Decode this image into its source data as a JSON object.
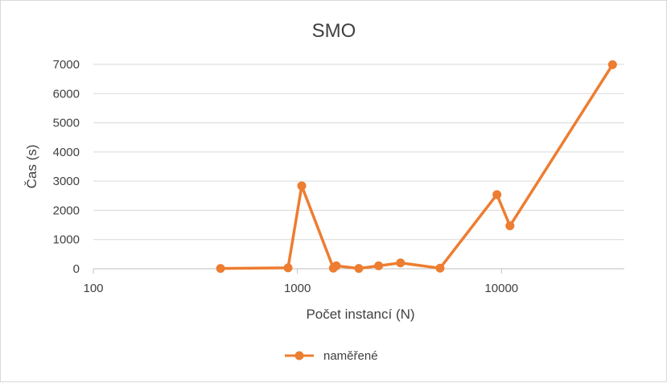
{
  "chart_data": {
    "type": "line",
    "title": "SMO",
    "xlabel": "Počet instancí (N)",
    "ylabel": "Čas (s)",
    "x_scale": "log",
    "xlim": [
      100,
      40000
    ],
    "ylim": [
      0,
      7000
    ],
    "x_ticks": [
      "100",
      "1000",
      "10000"
    ],
    "y_ticks": [
      "0",
      "1000",
      "2000",
      "3000",
      "4000",
      "5000",
      "6000",
      "7000"
    ],
    "grid": true,
    "legend_position": "bottom",
    "color": "#ED7D31",
    "series": [
      {
        "name": "naměřené",
        "x": [
          420,
          900,
          1050,
          1500,
          1550,
          2000,
          2500,
          3200,
          5000,
          9500,
          11000,
          35000
        ],
        "y": [
          10,
          30,
          2840,
          20,
          100,
          10,
          100,
          200,
          20,
          2540,
          1470,
          6990
        ]
      }
    ]
  }
}
